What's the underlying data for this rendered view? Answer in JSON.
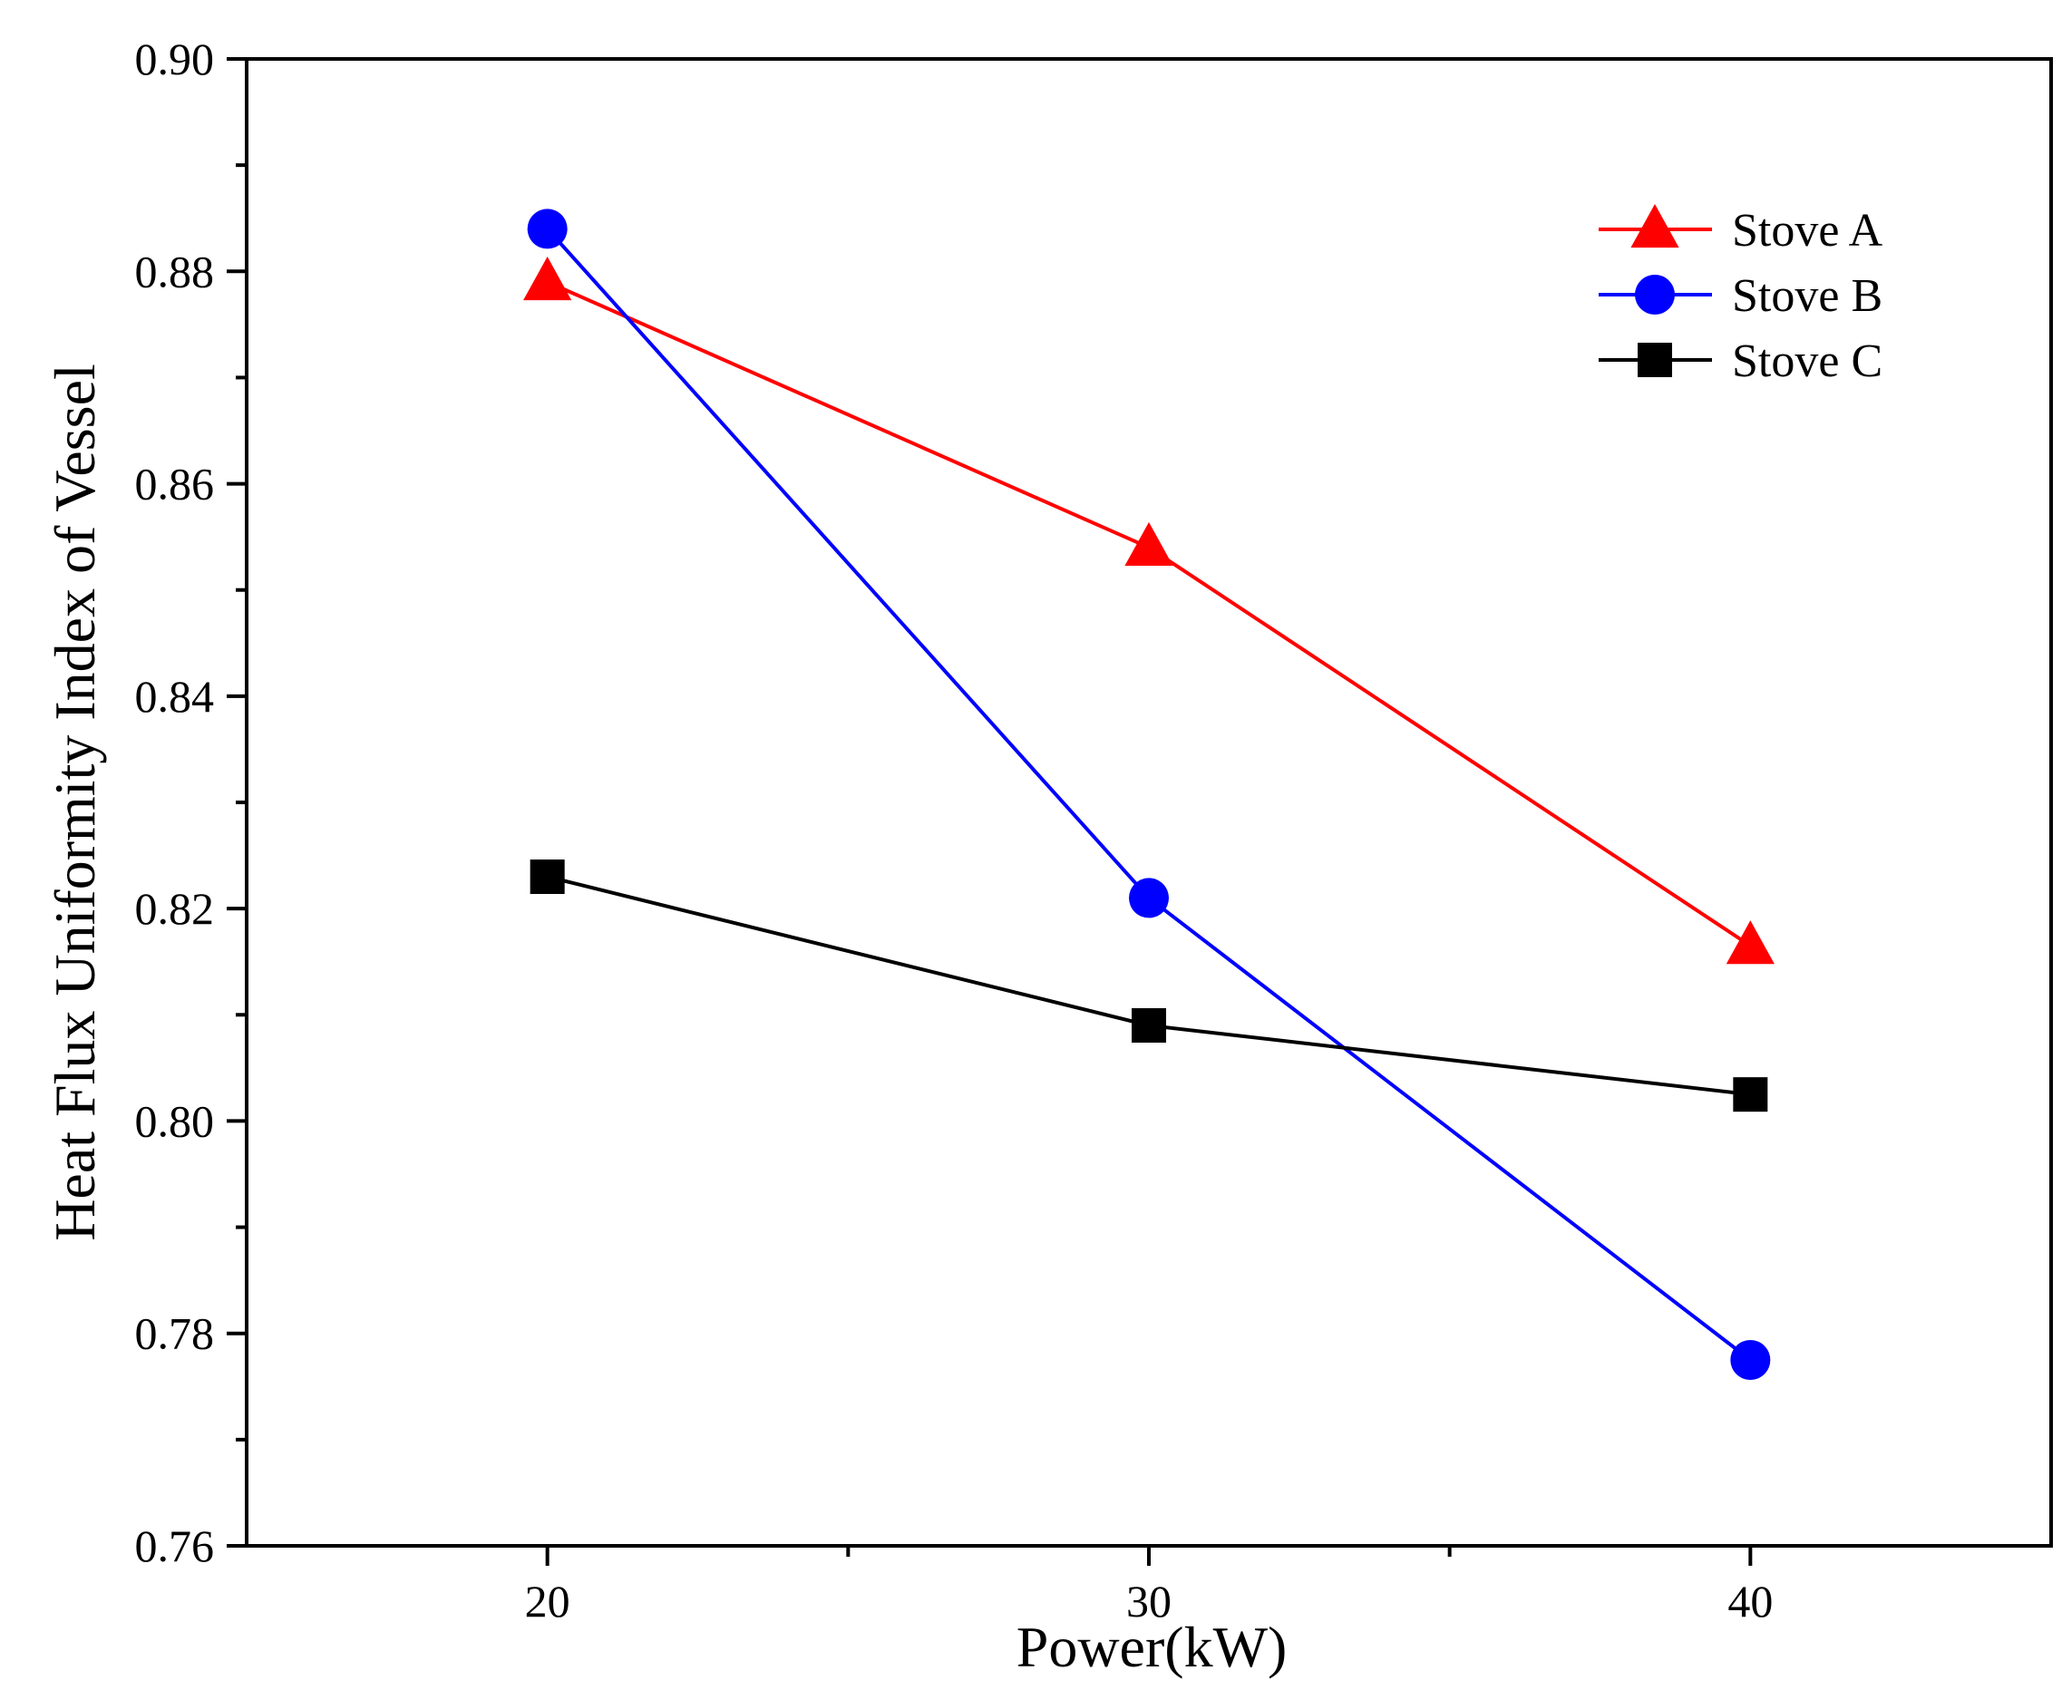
{
  "chart_data": {
    "type": "line",
    "title": "",
    "xlabel": "Power(kW)",
    "ylabel": "Heat Flux Uniformity Index of Vessel",
    "x": [
      20,
      30,
      40
    ],
    "xlim": [
      15,
      45
    ],
    "ylim": [
      0.76,
      0.9
    ],
    "xticks": [
      20,
      30,
      40
    ],
    "xtick_labels": [
      "20",
      "30",
      "40"
    ],
    "xminor_ticks": [
      25,
      35
    ],
    "yticks": [
      0.76,
      0.78,
      0.8,
      0.82,
      0.84,
      0.86,
      0.88,
      0.9
    ],
    "ytick_labels": [
      "0.76",
      "0.78",
      "0.80",
      "0.82",
      "0.84",
      "0.86",
      "0.88",
      "0.90"
    ],
    "yminor_ticks": [
      0.77,
      0.79,
      0.81,
      0.83,
      0.85,
      0.87,
      0.89
    ],
    "grid": false,
    "legend_position": "top-right",
    "series": [
      {
        "name": "Stove A",
        "values": [
          0.879,
          0.854,
          0.8165
        ],
        "color": "#ff0000",
        "marker": "triangle"
      },
      {
        "name": "Stove B",
        "values": [
          0.884,
          0.821,
          0.7775
        ],
        "color": "#0000ff",
        "marker": "circle"
      },
      {
        "name": "Stove C",
        "values": [
          0.823,
          0.809,
          0.8025
        ],
        "color": "#000000",
        "marker": "square"
      }
    ]
  }
}
